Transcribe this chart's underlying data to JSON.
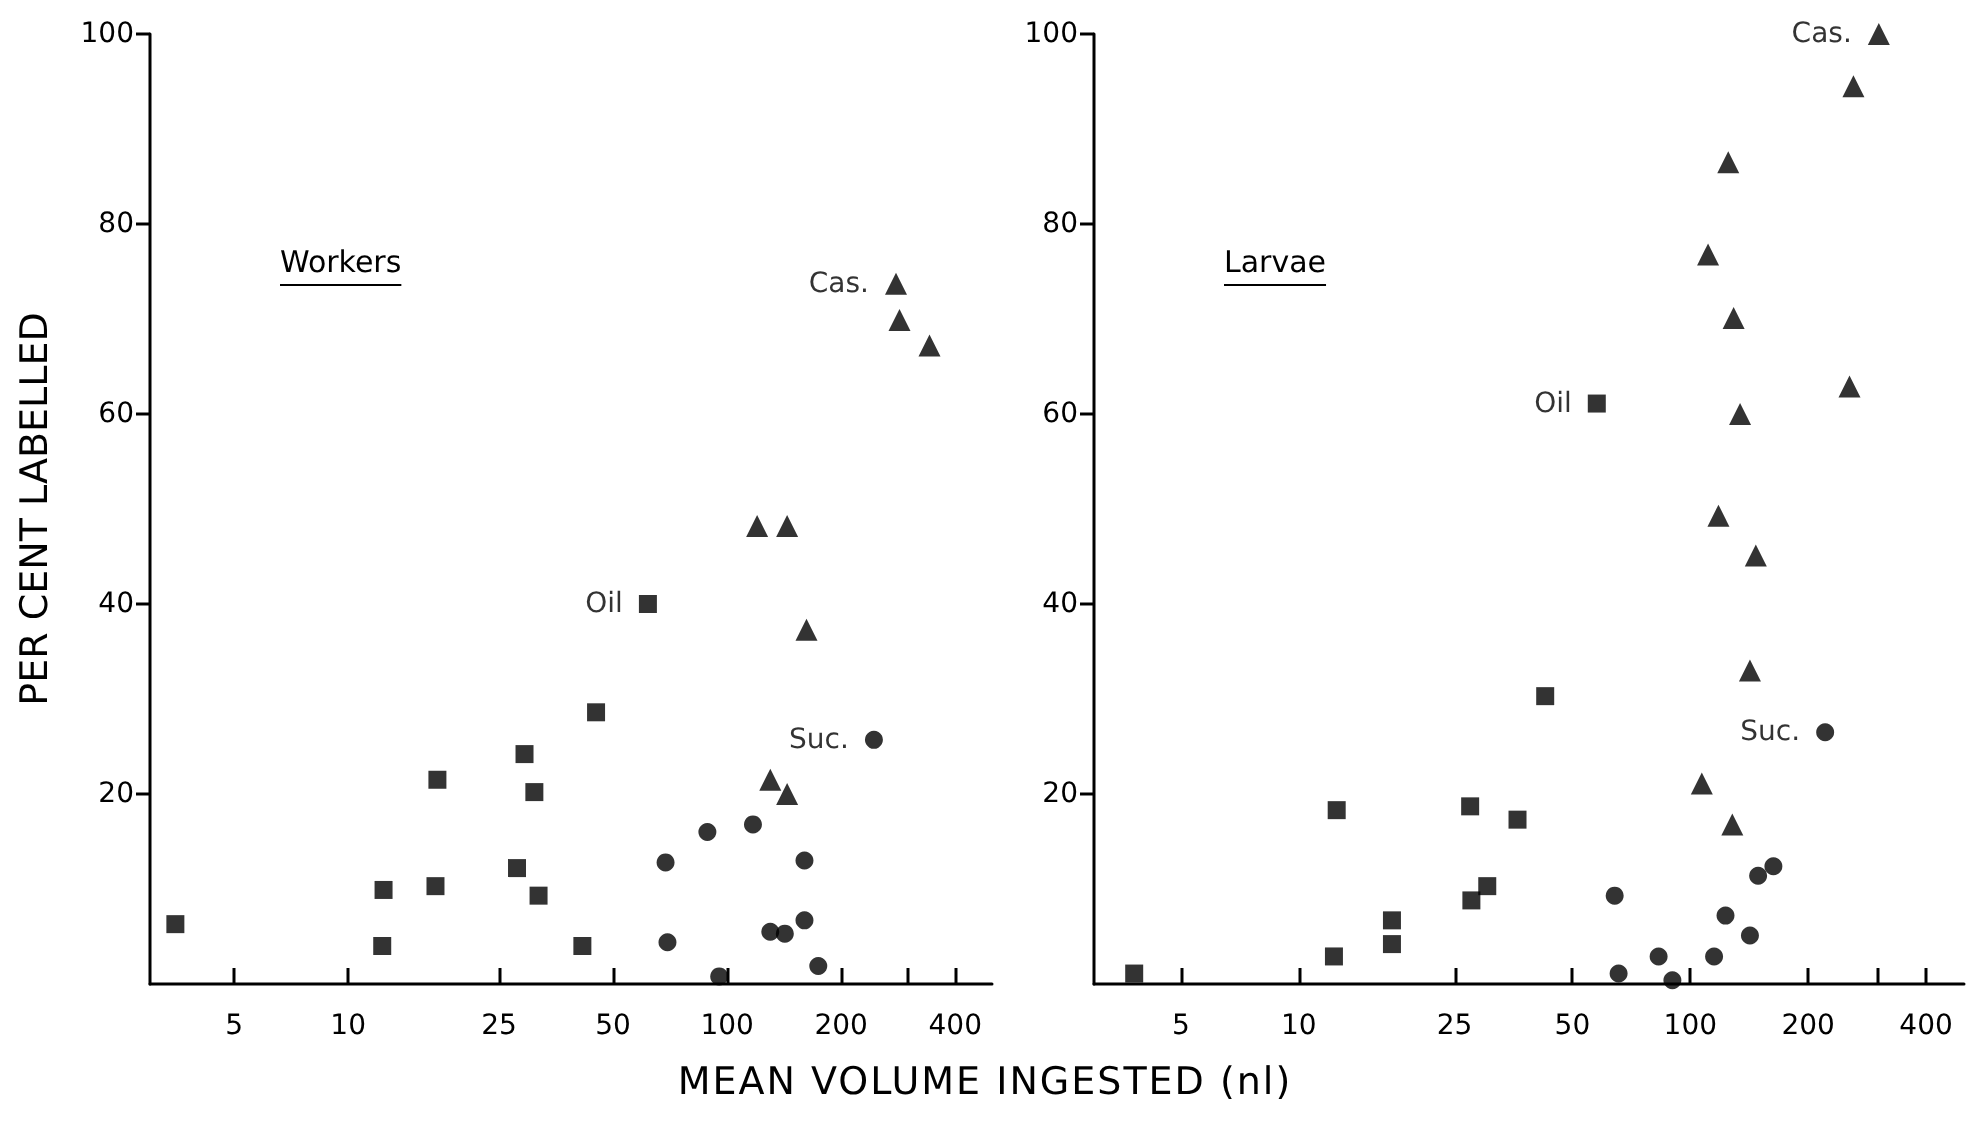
{
  "chart_data": [
    {
      "type": "scatter",
      "title": "Workers",
      "xlabel": "MEAN VOLUME INGESTED (nl)",
      "ylabel": "PER CENT LABELLED",
      "log": "x",
      "grid": false,
      "xlim": [
        3,
        500
      ],
      "xticks": [
        5,
        10,
        25,
        50,
        100,
        200,
        {
          "value": 300,
          "label": null
        },
        400
      ],
      "ylim": [
        0,
        100
      ],
      "yticks": [
        20,
        40,
        60,
        80,
        100
      ],
      "series": [
        {
          "name": "Oil",
          "color": "#000000",
          "marker": "square",
          "x": [
            3.5,
            12.4,
            12.3,
            17.0,
            17.2,
            29.2,
            31.0,
            27.9,
            31.8,
            41.5,
            45.1,
            61.8
          ],
          "values": [
            6.3,
            9.9,
            4.0,
            10.3,
            21.5,
            24.2,
            20.2,
            12.2,
            9.3,
            4.0,
            28.6,
            40.0
          ]
        },
        {
          "name": "Suc.",
          "color": "#000000",
          "marker": "circle",
          "x": [
            68.8,
            69.6,
            88.7,
            95.3,
            117,
            130,
            142,
            160,
            174,
            244,
            160
          ],
          "values": [
            12.8,
            4.4,
            16.0,
            0.8,
            16.8,
            5.5,
            5.3,
            6.7,
            1.9,
            25.7,
            13.0
          ]
        },
        {
          "name": "Cas.",
          "color": "#000000",
          "marker": "triangle",
          "x": [
            279,
            285,
            342,
            120,
            144,
            162,
            130,
            144
          ],
          "values": [
            73.7,
            69.9,
            67.2,
            48.2,
            48.2,
            37.3,
            21.5,
            20.0
          ]
        }
      ]
    },
    {
      "type": "scatter",
      "title": "Larvae",
      "ylabel": null,
      "log": "x",
      "grid": false,
      "xlim": [
        3,
        500
      ],
      "xticks": [
        5,
        10,
        25,
        50,
        100,
        200,
        {
          "value": 300,
          "label": null
        },
        400
      ],
      "ylim": [
        0,
        100
      ],
      "yticks": [
        20,
        40,
        60,
        80,
        100
      ],
      "series": [
        {
          "name": "Oil",
          "color": "#000000",
          "marker": "square",
          "x": [
            3.8,
            12.3,
            12.5,
            17.3,
            17.3,
            27.4,
            27.6,
            30.3,
            36.2,
            42.6,
            57.7
          ],
          "values": [
            1.1,
            2.9,
            18.3,
            6.7,
            4.2,
            18.7,
            8.8,
            10.3,
            17.3,
            30.3,
            61.1
          ]
        },
        {
          "name": "Suc.",
          "color": "#000000",
          "marker": "circle",
          "x": [
            64.1,
            65.6,
            83.0,
            90.0,
            115,
            142,
            163,
            149,
            221,
            123
          ],
          "values": [
            9.3,
            1.1,
            2.9,
            0.4,
            2.9,
            5.1,
            12.4,
            11.4,
            26.5,
            7.2
          ]
        },
        {
          "name": "Cas.",
          "color": "#000000",
          "marker": "triangle",
          "x": [
            303,
            261,
            125,
            111,
            129,
            134,
            255,
            118,
            147,
            142,
            107,
            128
          ],
          "values": [
            100,
            94.5,
            86.5,
            76.8,
            70.1,
            60.0,
            62.9,
            49.3,
            45.1,
            33.0,
            21.1,
            16.8
          ]
        }
      ]
    }
  ]
}
